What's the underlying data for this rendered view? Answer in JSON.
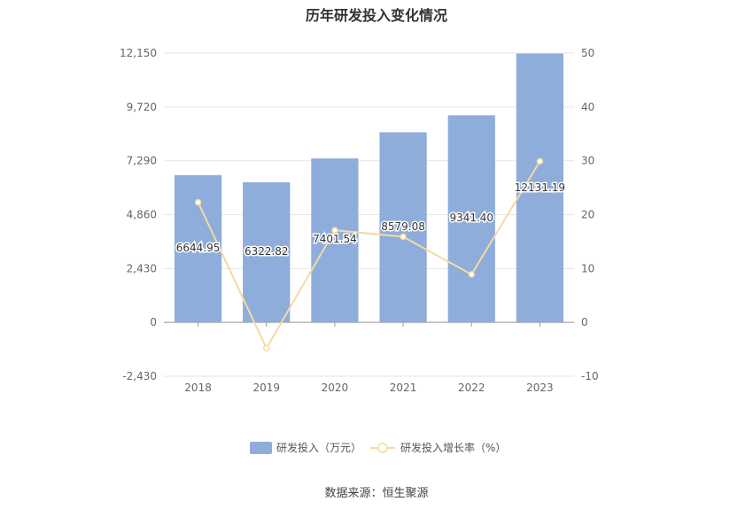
{
  "chart_data": {
    "type": "bar",
    "title": "历年研发投入变化情况",
    "categories": [
      "2018",
      "2019",
      "2020",
      "2021",
      "2022",
      "2023"
    ],
    "series": [
      {
        "name": "研发投入（万元）",
        "kind": "bar",
        "axis": "left",
        "values": [
          6644.95,
          6322.82,
          7401.54,
          8579.08,
          9341.4,
          12131.19
        ],
        "labels": [
          "6644.95",
          "6322.82",
          "7401.54",
          "8579.08",
          "9341.40",
          "12131.19"
        ],
        "color": "#8eaddb"
      },
      {
        "name": "研发投入增长率（%）",
        "kind": "line",
        "axis": "right",
        "values": [
          22.3,
          -4.8,
          17.1,
          15.9,
          8.9,
          29.9
        ],
        "color": "#f5d9a3"
      }
    ],
    "y_left": {
      "min": -2430,
      "max": 12150,
      "ticks": [
        "-2,430",
        "0",
        "2,430",
        "4,860",
        "7,290",
        "9,720",
        "12,150"
      ],
      "tick_values": [
        -2430,
        0,
        2430,
        4860,
        7290,
        9720,
        12150
      ]
    },
    "y_right": {
      "min": -10,
      "max": 50,
      "ticks": [
        "-10",
        "0",
        "10",
        "20",
        "30",
        "40",
        "50"
      ],
      "tick_values": [
        -10,
        0,
        10,
        20,
        30,
        40,
        50
      ]
    },
    "grid": true,
    "legend_position": "bottom"
  },
  "source_text": "数据来源：恒生聚源"
}
